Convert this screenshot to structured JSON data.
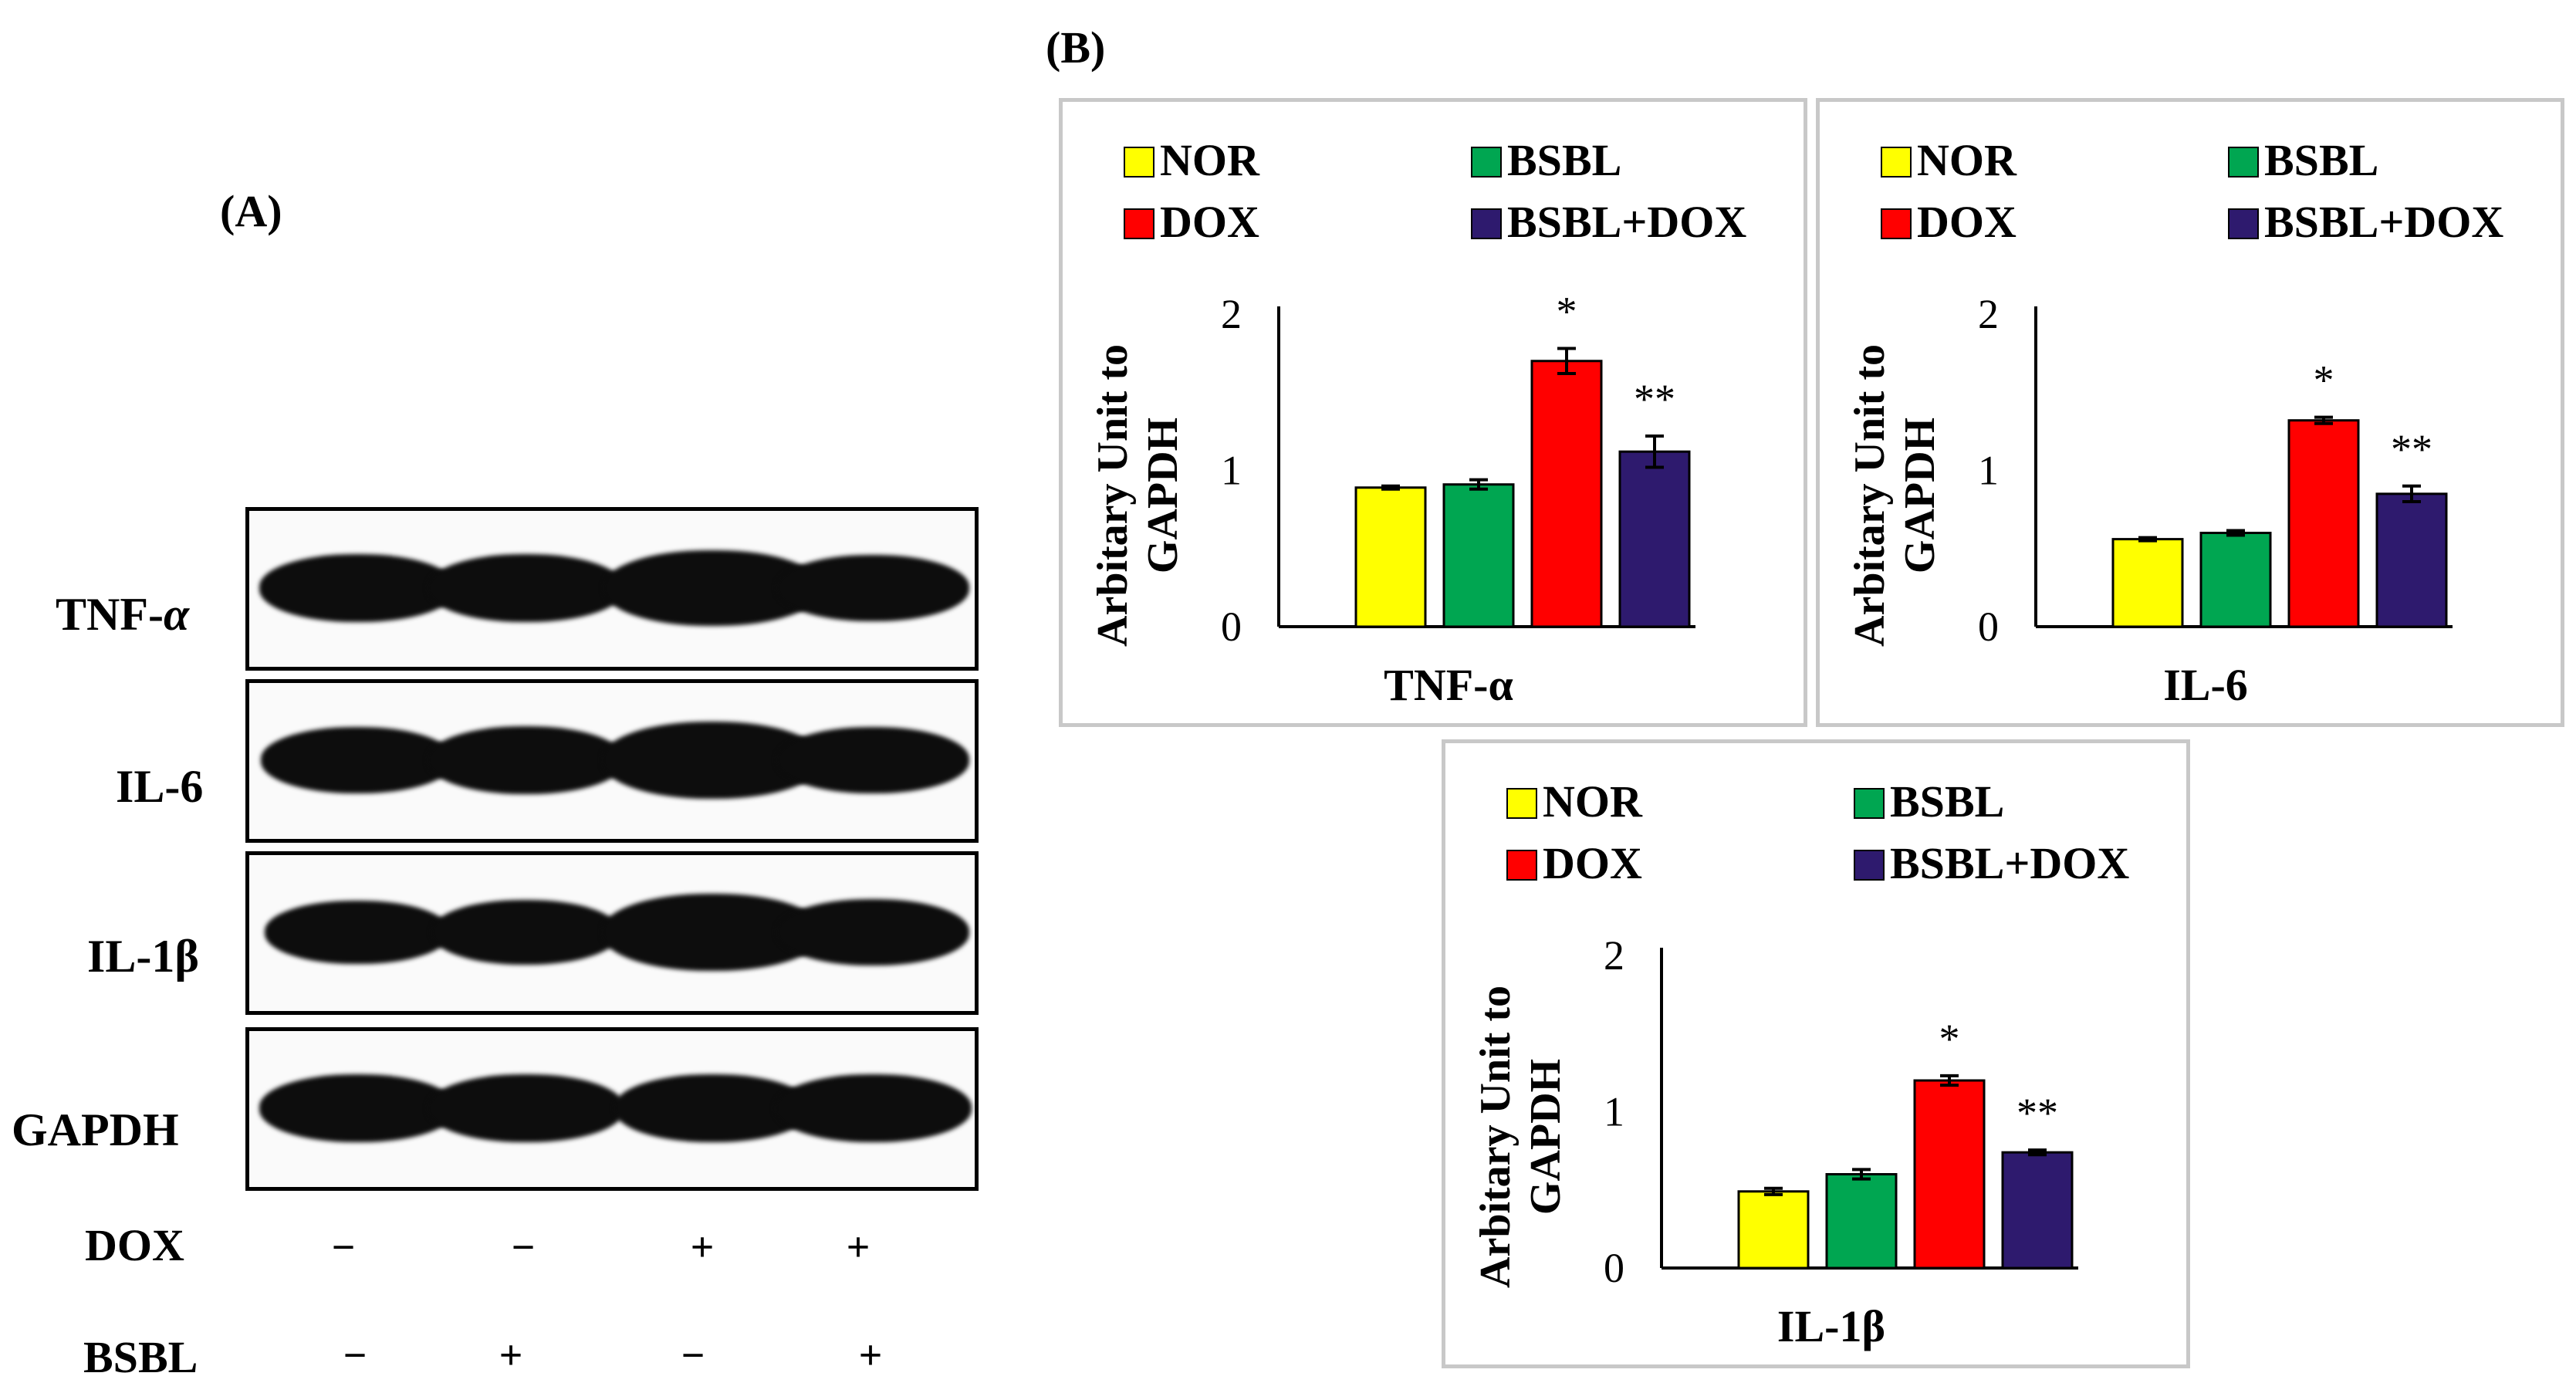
{
  "panel_a": {
    "label": "(A)",
    "blots": [
      {
        "name": "TNF-",
        "greek": "α",
        "bands": [
          1,
          1,
          1.25,
          0.95
        ]
      },
      {
        "name": "IL-6",
        "greek": "",
        "bands": [
          0.95,
          1,
          1.3,
          0.95
        ]
      },
      {
        "name": "IL-1",
        "greek": "β",
        "bands": [
          0.85,
          0.9,
          1.3,
          0.95
        ]
      },
      {
        "name": "GAPDH",
        "greek": "",
        "bands": [
          1,
          1,
          1,
          1
        ]
      }
    ],
    "treatments": [
      {
        "name": "DOX",
        "signs": [
          "−",
          "−",
          "+",
          "+"
        ]
      },
      {
        "name": "BSBL",
        "signs": [
          "−",
          "+",
          "−",
          "+"
        ]
      }
    ]
  },
  "panel_b": {
    "label": "(B)"
  },
  "colors": {
    "NOR": "#ffff00",
    "BSBL": "#00a651",
    "DOX": "#ff0000",
    "BSBL+DOX": "#2e1a6e",
    "axis": "#000000",
    "frame": "#c8c8c8"
  },
  "chart_data": [
    {
      "type": "bar",
      "title": "TNF-α",
      "xlabel": "TNF-α",
      "ylabel_line1": "Arbitary Unit to",
      "ylabel_line2": "GAPDH",
      "ylim": [
        0,
        2
      ],
      "yticks": [
        "0",
        "1",
        "2"
      ],
      "legend": [
        "NOR",
        "BSBL",
        "DOX",
        "BSBL+DOX"
      ],
      "categories": [
        "NOR",
        "BSBL",
        "DOX",
        "BSBL+DOX"
      ],
      "values": [
        0.89,
        0.91,
        1.7,
        1.12
      ],
      "errors": [
        0.01,
        0.03,
        0.08,
        0.1
      ],
      "annotations": [
        "",
        "",
        "*",
        "**"
      ]
    },
    {
      "type": "bar",
      "title": "IL-6",
      "xlabel": "IL-6",
      "ylabel_line1": "Arbitary Unit to",
      "ylabel_line2": "GAPDH",
      "ylim": [
        0,
        2
      ],
      "yticks": [
        "0",
        "1",
        "2"
      ],
      "legend": [
        "NOR",
        "BSBL",
        "DOX",
        "BSBL+DOX"
      ],
      "categories": [
        "NOR",
        "BSBL",
        "DOX",
        "BSBL+DOX"
      ],
      "values": [
        0.56,
        0.6,
        1.32,
        0.85
      ],
      "errors": [
        0.01,
        0.015,
        0.02,
        0.05
      ],
      "annotations": [
        "",
        "",
        "*",
        "**"
      ]
    },
    {
      "type": "bar",
      "title": "IL-1β",
      "xlabel": "IL-1β",
      "ylabel_line1": "Arbitary Unit to",
      "ylabel_line2": "GAPDH",
      "ylim": [
        0,
        2
      ],
      "yticks": [
        "0",
        "1",
        "2"
      ],
      "legend": [
        "NOR",
        "BSBL",
        "DOX",
        "BSBL+DOX"
      ],
      "categories": [
        "NOR",
        "BSBL",
        "DOX",
        "BSBL+DOX"
      ],
      "values": [
        0.49,
        0.6,
        1.2,
        0.74
      ],
      "errors": [
        0.02,
        0.03,
        0.03,
        0.015
      ],
      "annotations": [
        "",
        "",
        "*",
        "**"
      ]
    }
  ]
}
